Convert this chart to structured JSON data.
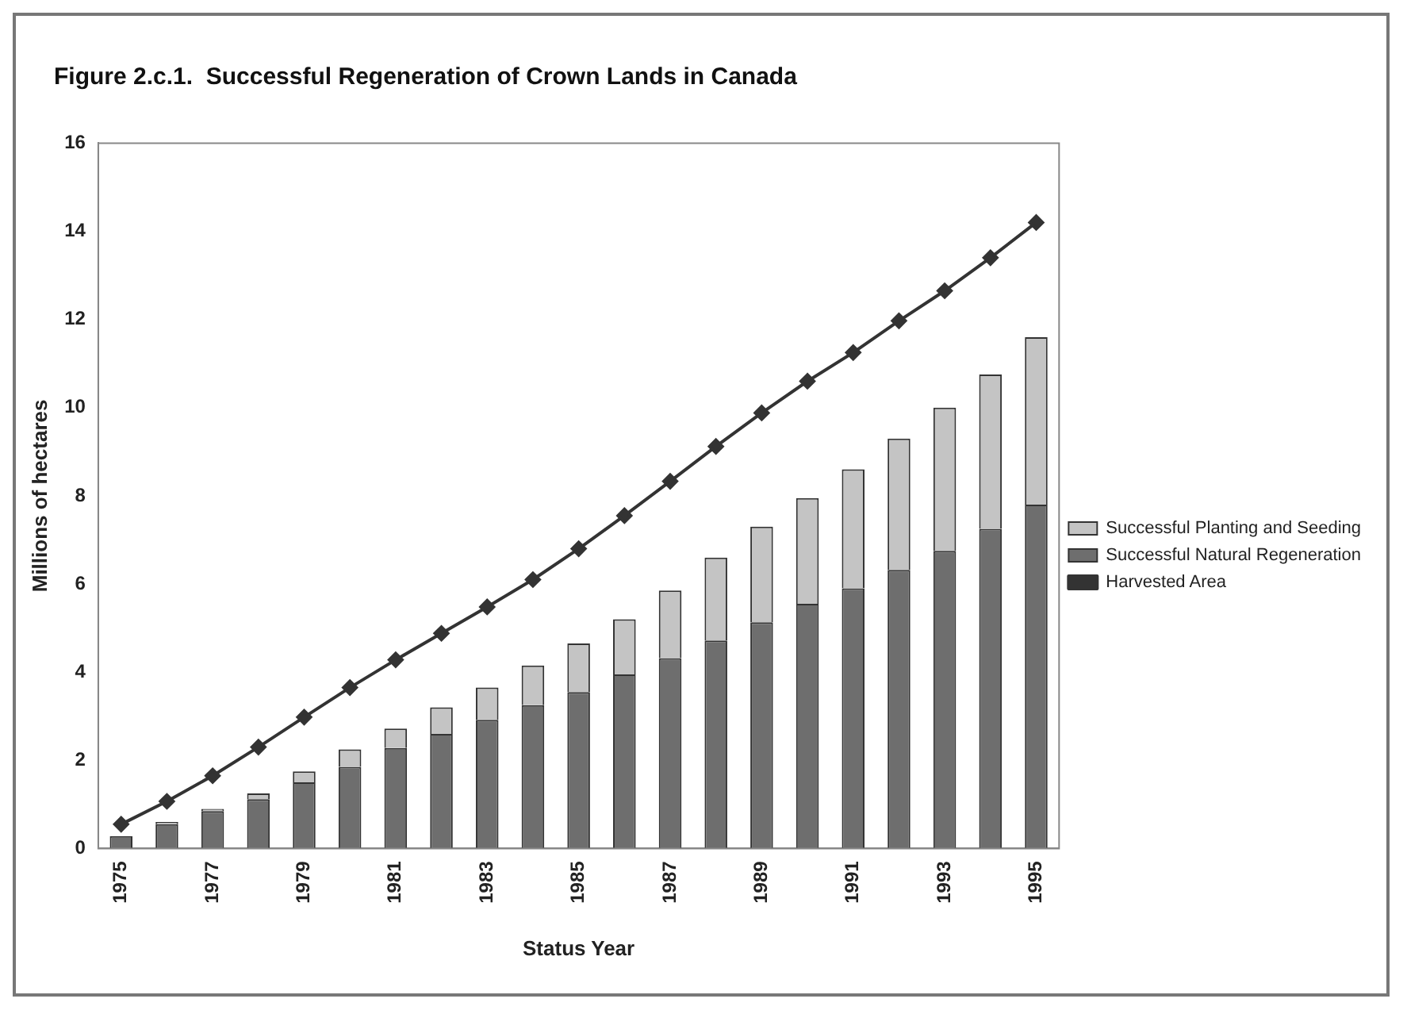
{
  "chart_data": {
    "type": "bar",
    "title": "Figure 2.c.1.  Successful Regeneration of Crown Lands in Canada",
    "xlabel": "Status Year",
    "ylabel": "Millions of hectares",
    "categories": [
      "1975",
      null,
      "1977",
      null,
      "1979",
      null,
      "1981",
      null,
      "1983",
      null,
      "1985",
      null,
      "1987",
      null,
      "1989",
      null,
      "1991",
      null,
      "1993",
      null,
      "1995"
    ],
    "stacked": true,
    "ylim": [
      0,
      16
    ],
    "yticks": [
      0,
      2,
      4,
      6,
      8,
      10,
      12,
      14,
      16
    ],
    "grid": false,
    "legend": "right",
    "marker": "diamond",
    "series": [
      {
        "name": "Successful Planting and Seeding",
        "color": "#c4c4c4",
        "values": [
          null,
          0.05,
          0.05,
          0.13,
          0.25,
          0.4,
          0.44,
          0.6,
          0.73,
          0.9,
          1.1,
          1.25,
          1.53,
          1.88,
          2.17,
          2.4,
          2.7,
          2.98,
          3.25,
          3.5,
          3.8
        ]
      },
      {
        "name": "Successful Natural Regeneration",
        "color": "#6e6e6e",
        "values": [
          0.28,
          0.55,
          0.85,
          1.12,
          1.5,
          1.85,
          2.28,
          2.6,
          2.92,
          3.25,
          3.55,
          3.95,
          4.32,
          4.72,
          5.13,
          5.55,
          5.9,
          6.32,
          6.75,
          7.25,
          7.8
        ]
      },
      {
        "name": "Harvested Area",
        "type": "line",
        "color": "#333333",
        "values": [
          0.55,
          1.07,
          1.65,
          2.3,
          2.98,
          3.65,
          4.28,
          4.88,
          5.48,
          6.1,
          6.8,
          7.55,
          8.33,
          9.12,
          9.88,
          10.6,
          11.25,
          11.97,
          12.65,
          13.4,
          14.2
        ]
      }
    ]
  }
}
